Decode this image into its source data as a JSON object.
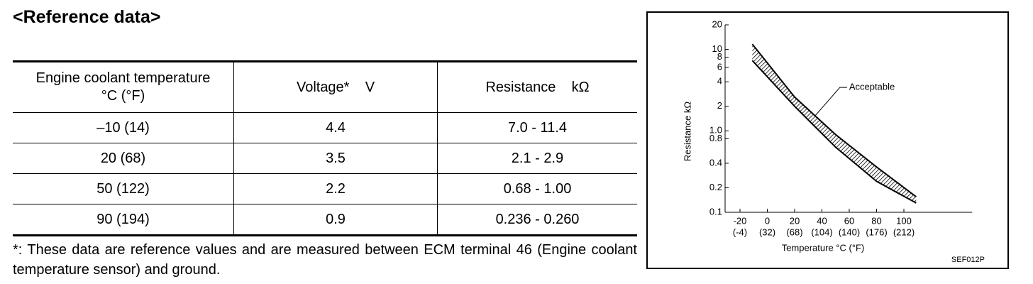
{
  "heading": "<Reference data>",
  "table": {
    "headers": [
      [
        "Engine coolant temperature",
        "°C (°F)"
      ],
      [
        "Voltage*    V"
      ],
      [
        "Resistance    kΩ"
      ]
    ],
    "rows": [
      [
        "–10 (14)",
        "4.4",
        "7.0 - 11.4"
      ],
      [
        "20 (68)",
        "3.5",
        "2.1 - 2.9"
      ],
      [
        "50 (122)",
        "2.2",
        "0.68 - 1.00"
      ],
      [
        "90 (194)",
        "0.9",
        "0.236 - 0.260"
      ]
    ]
  },
  "footnote": "*: These data are reference values and are measured between ECM terminal 46 (Engine coolant temperature sensor) and ground.",
  "figure": {
    "chart_data": {
      "type": "band",
      "x_label": "Temperature °C (°F)",
      "y_label": "Resistance kΩ",
      "annotation": "Acceptable",
      "code": "SEF012P",
      "x": [
        -11,
        20,
        50,
        80,
        109
      ],
      "upper": [
        11.6,
        2.6,
        0.9,
        0.36,
        0.155
      ],
      "lower": [
        7.3,
        2.0,
        0.63,
        0.24,
        0.13
      ],
      "xlim": [
        -30,
        150
      ],
      "xticks": [
        -20,
        0,
        20,
        40,
        60,
        80,
        100
      ],
      "xtick_sublabels": [
        "(-4)",
        "(32)",
        "(68)",
        "(104)",
        "(140)",
        "(176)",
        "(212)"
      ],
      "ylim": [
        0.1,
        20
      ],
      "log_y": true,
      "yticks": [
        0.1,
        0.2,
        0.4,
        0.8,
        {
          "value": 1,
          "label": "1.0"
        },
        2,
        4,
        6,
        8,
        10,
        20
      ],
      "color": "#000000"
    }
  }
}
